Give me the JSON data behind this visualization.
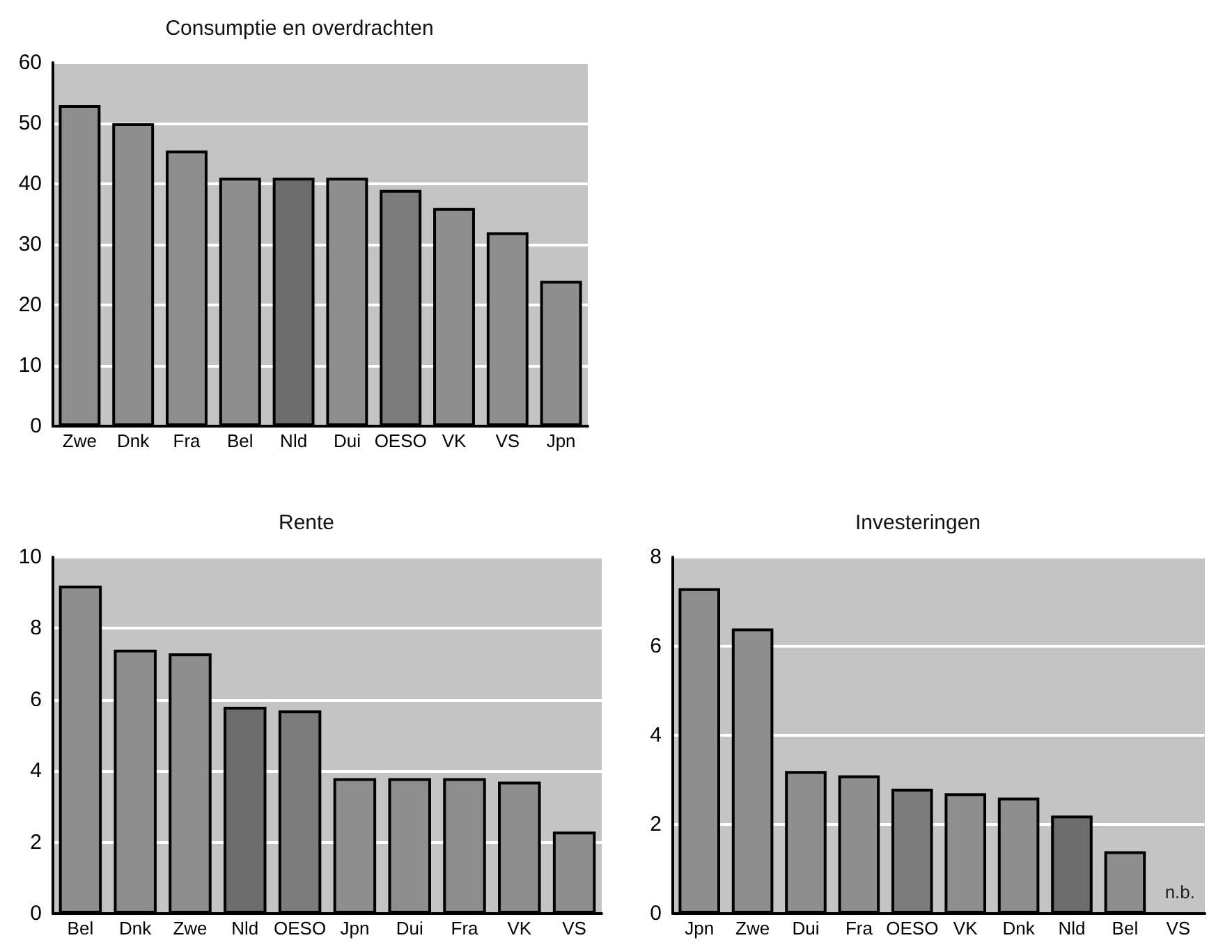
{
  "chart_data": [
    {
      "type": "bar",
      "title": "Consumptie en overdrachten",
      "categories": [
        "Zwe",
        "Dnk",
        "Fra",
        "Bel",
        "Nld",
        "Dui",
        "OESO",
        "VK",
        "VS",
        "Jpn"
      ],
      "values": [
        53,
        50,
        45.5,
        41,
        41,
        41,
        39,
        36,
        32,
        24
      ],
      "colors": [
        "#8e8e8e",
        "#8e8e8e",
        "#8e8e8e",
        "#8e8e8e",
        "#6c6c6c",
        "#8e8e8e",
        "#7c7c7c",
        "#8e8e8e",
        "#8e8e8e",
        "#8e8e8e"
      ],
      "ylim": [
        0,
        60
      ],
      "yticks": [
        0,
        10,
        20,
        30,
        40,
        50,
        60
      ],
      "grid": "y"
    },
    {
      "type": "bar",
      "title": "Rente",
      "categories": [
        "Bel",
        "Dnk",
        "Zwe",
        "Nld",
        "OESO",
        "Jpn",
        "Dui",
        "Fra",
        "VK",
        "VS"
      ],
      "values": [
        9.2,
        7.4,
        7.3,
        5.8,
        5.7,
        3.8,
        3.8,
        3.8,
        3.7,
        2.3
      ],
      "colors": [
        "#8e8e8e",
        "#8e8e8e",
        "#8e8e8e",
        "#6c6c6c",
        "#7c7c7c",
        "#8e8e8e",
        "#8e8e8e",
        "#8e8e8e",
        "#8e8e8e",
        "#8e8e8e"
      ],
      "ylim": [
        0,
        10
      ],
      "yticks": [
        0,
        2,
        4,
        6,
        8,
        10
      ],
      "grid": "y"
    },
    {
      "type": "bar",
      "title": "Investeringen",
      "categories": [
        "Jpn",
        "Zwe",
        "Dui",
        "Fra",
        "OESO",
        "VK",
        "Dnk",
        "Nld",
        "Bel",
        "VS"
      ],
      "values": [
        7.3,
        6.4,
        3.2,
        3.1,
        2.8,
        2.7,
        2.6,
        2.2,
        1.4,
        null
      ],
      "colors": [
        "#8e8e8e",
        "#8e8e8e",
        "#8e8e8e",
        "#8e8e8e",
        "#7c7c7c",
        "#8e8e8e",
        "#8e8e8e",
        "#6c6c6c",
        "#8e8e8e",
        "#8e8e8e"
      ],
      "ylim": [
        0,
        8
      ],
      "yticks": [
        0,
        2,
        4,
        6,
        8
      ],
      "grid": "y",
      "annotations": [
        "n.b."
      ]
    }
  ]
}
